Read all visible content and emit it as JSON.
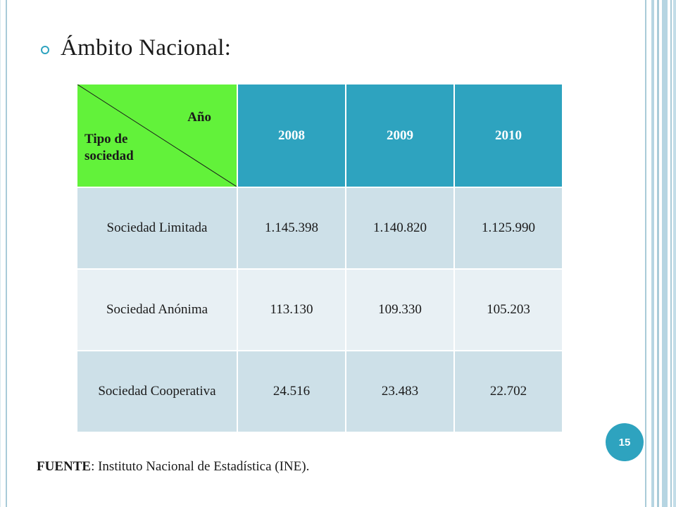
{
  "slide": {
    "heading": "Ámbito Nacional:",
    "page_number": "15",
    "source_label": "FUENTE",
    "source_text": ": Instituto Nacional de Estadística (INE)."
  },
  "table": {
    "corner_top": "Año",
    "corner_bottom": "Tipo de sociedad",
    "years": [
      "2008",
      "2009",
      "2010"
    ],
    "rows": [
      {
        "label": "Sociedad Limitada",
        "values": [
          "1.145.398",
          "1.140.820",
          "1.125.990"
        ]
      },
      {
        "label": "Sociedad Anónima",
        "values": [
          "113.130",
          "109.330",
          "105.203"
        ]
      },
      {
        "label": "Sociedad Cooperativa",
        "values": [
          "24.516",
          "23.483",
          "22.702"
        ]
      }
    ]
  },
  "colors": {
    "accent": "#2ea3bf",
    "corner_bg": "#62f23a",
    "row_odd": "#cde0e8",
    "row_even": "#e8f0f4"
  },
  "icons": {
    "bullet": "circle-bullet-icon"
  }
}
